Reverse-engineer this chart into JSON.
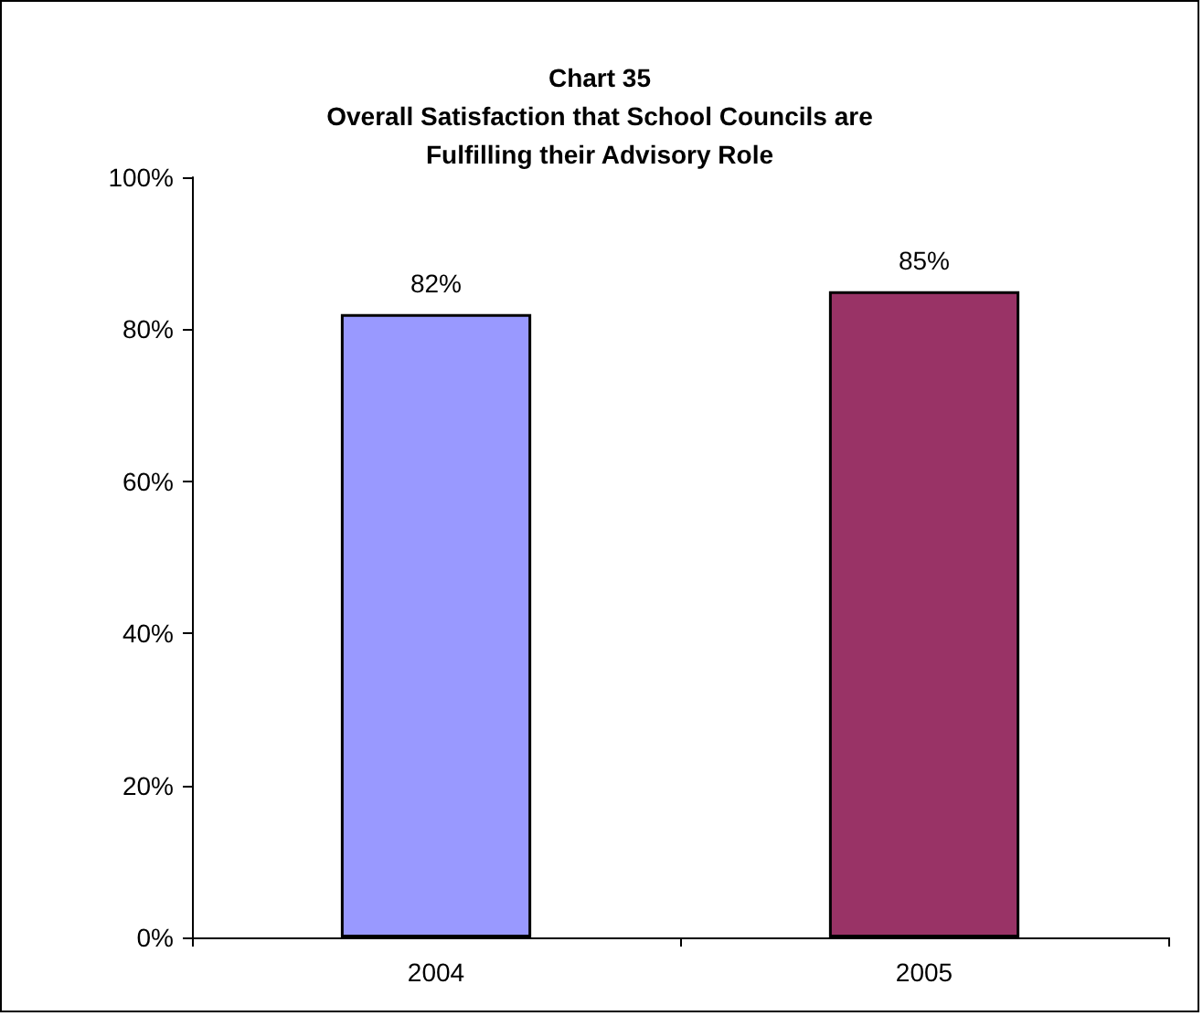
{
  "chart_data": {
    "type": "bar",
    "title": "Chart 35\nOverall Satisfaction that School Councils are\nFulfilling their Advisory Role",
    "categories": [
      "2004",
      "2005"
    ],
    "values": [
      82,
      85
    ],
    "colors": [
      "#9999ff",
      "#993366"
    ],
    "value_labels": [
      "82%",
      "85%"
    ],
    "ylim": [
      0,
      100
    ],
    "yticks": [
      {
        "value": 0,
        "label": "0%"
      },
      {
        "value": 20,
        "label": "20%"
      },
      {
        "value": 40,
        "label": "40%"
      },
      {
        "value": 60,
        "label": "60%"
      },
      {
        "value": 80,
        "label": "80%"
      },
      {
        "value": 100,
        "label": "100%"
      }
    ],
    "grid": false
  }
}
